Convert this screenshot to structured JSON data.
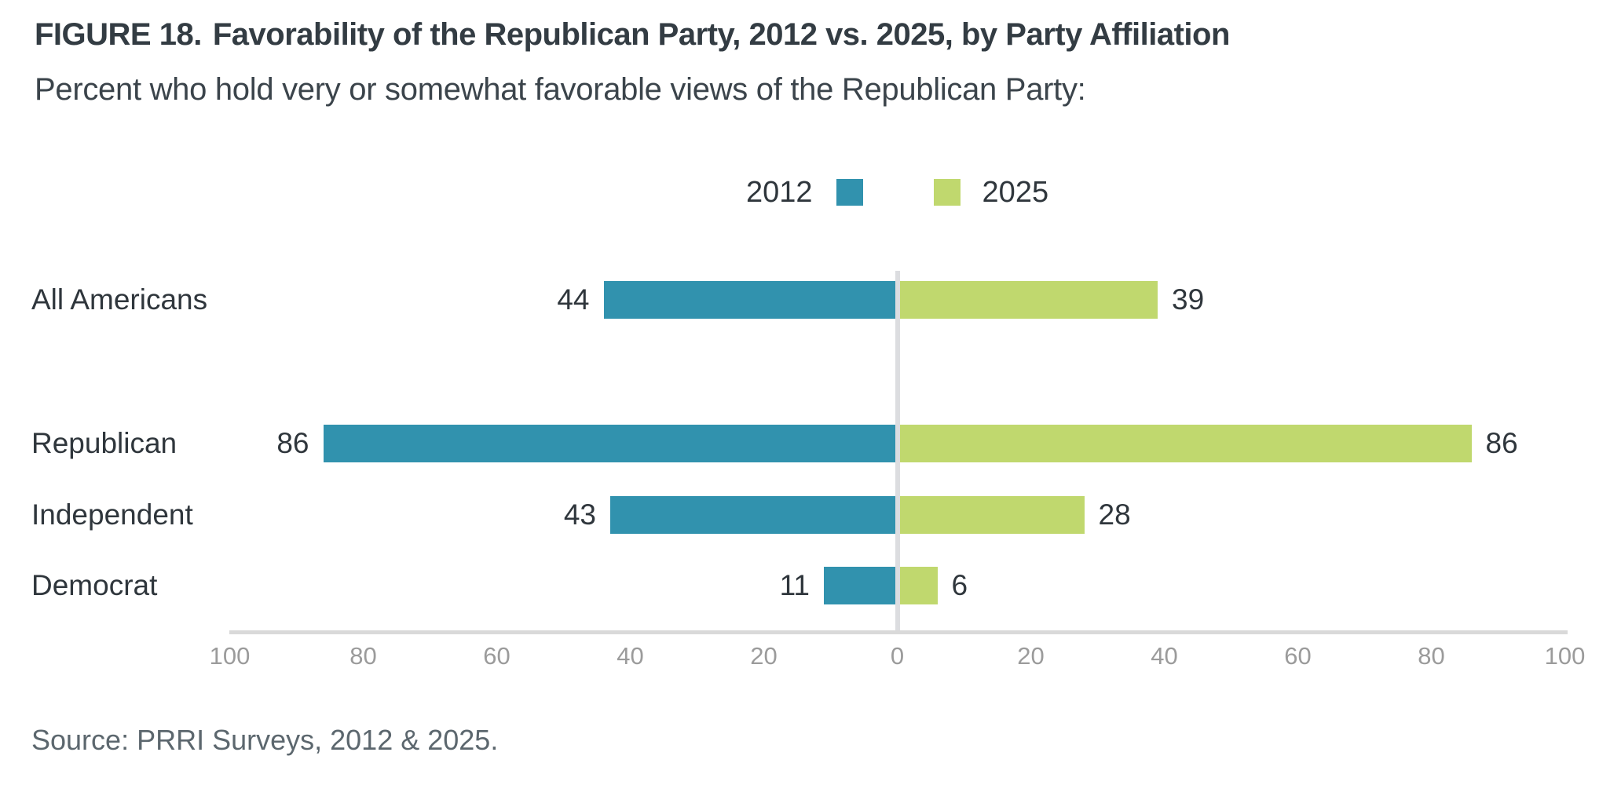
{
  "figure": {
    "label": "FIGURE 18.",
    "title": "Favorability of the Republican Party, 2012 vs. 2025, by Party Affiliation",
    "subtitle": "Percent who hold very or somewhat favorable views of the Republican Party:",
    "source": "Source: PRRI Surveys, 2012 & 2025."
  },
  "colors": {
    "series_2012": "#3192ae",
    "series_2025": "#c0d86e",
    "axis_line": "#d9d9d9",
    "center_line": "#dcdde0",
    "tick_text": "#9b9b9b",
    "title_text": "#333c43",
    "body_text": "#2f363c",
    "source_text": "#5c676e"
  },
  "chart_data": {
    "type": "bar",
    "variant": "diverging-horizontal",
    "title": "FIGURE 18. Favorability of the Republican Party, 2012 vs. 2025, by Party Affiliation",
    "subtitle": "Percent who hold very or somewhat favorable views of the Republican Party:",
    "categories": [
      "All Americans",
      "Republican",
      "Independent",
      "Democrat"
    ],
    "series": [
      {
        "name": "2012",
        "side": "left",
        "color": "#3192ae",
        "values": [
          44,
          86,
          43,
          11
        ]
      },
      {
        "name": "2025",
        "side": "right",
        "color": "#c0d86e",
        "values": [
          39,
          86,
          28,
          6
        ]
      }
    ],
    "xlabel": "",
    "ylabel": "",
    "axis_ticks": [
      100,
      80,
      60,
      40,
      20,
      0,
      20,
      40,
      60,
      80,
      100
    ],
    "axis_range_abs": [
      0,
      100
    ],
    "grid": false,
    "legend_position": "top-center",
    "value_labels": true,
    "source": "Source: PRRI Surveys, 2012 & 2025."
  }
}
